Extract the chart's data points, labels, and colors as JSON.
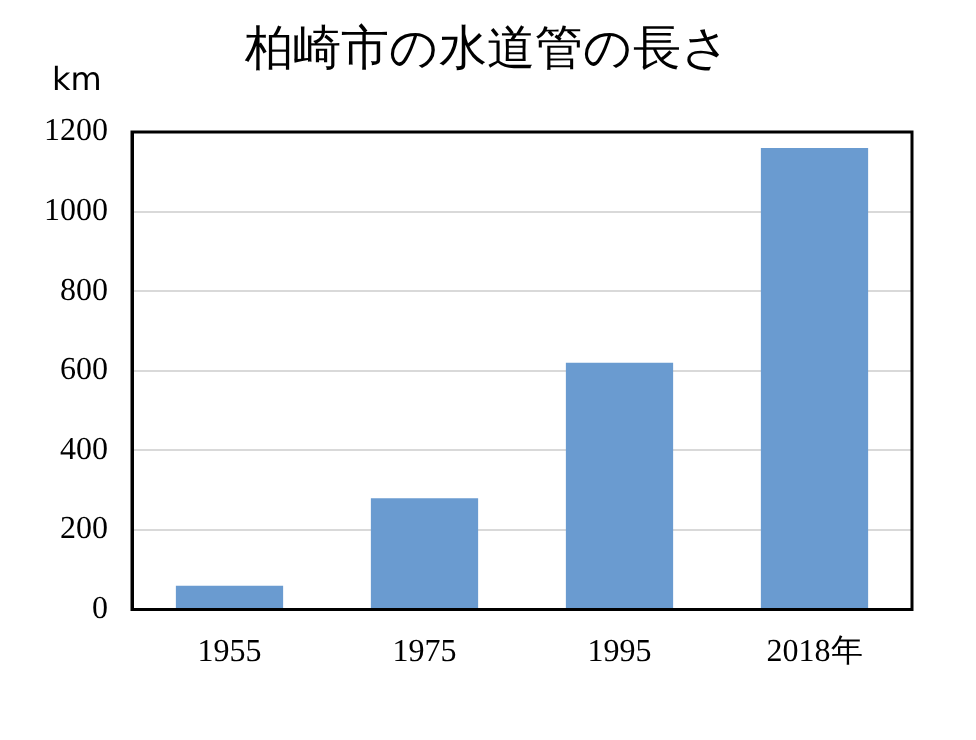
{
  "chart_data": {
    "type": "bar",
    "title": "柏崎市の水道管の長さ",
    "ylabel": "km",
    "categories": [
      "1955",
      "1975",
      "1995",
      "2018年"
    ],
    "values": [
      60,
      280,
      620,
      1160
    ],
    "color": "#6a9bd0",
    "ylim": [
      0,
      1200
    ],
    "yticks": [
      0,
      200,
      400,
      600,
      800,
      1000,
      1200
    ],
    "grid": "y"
  }
}
